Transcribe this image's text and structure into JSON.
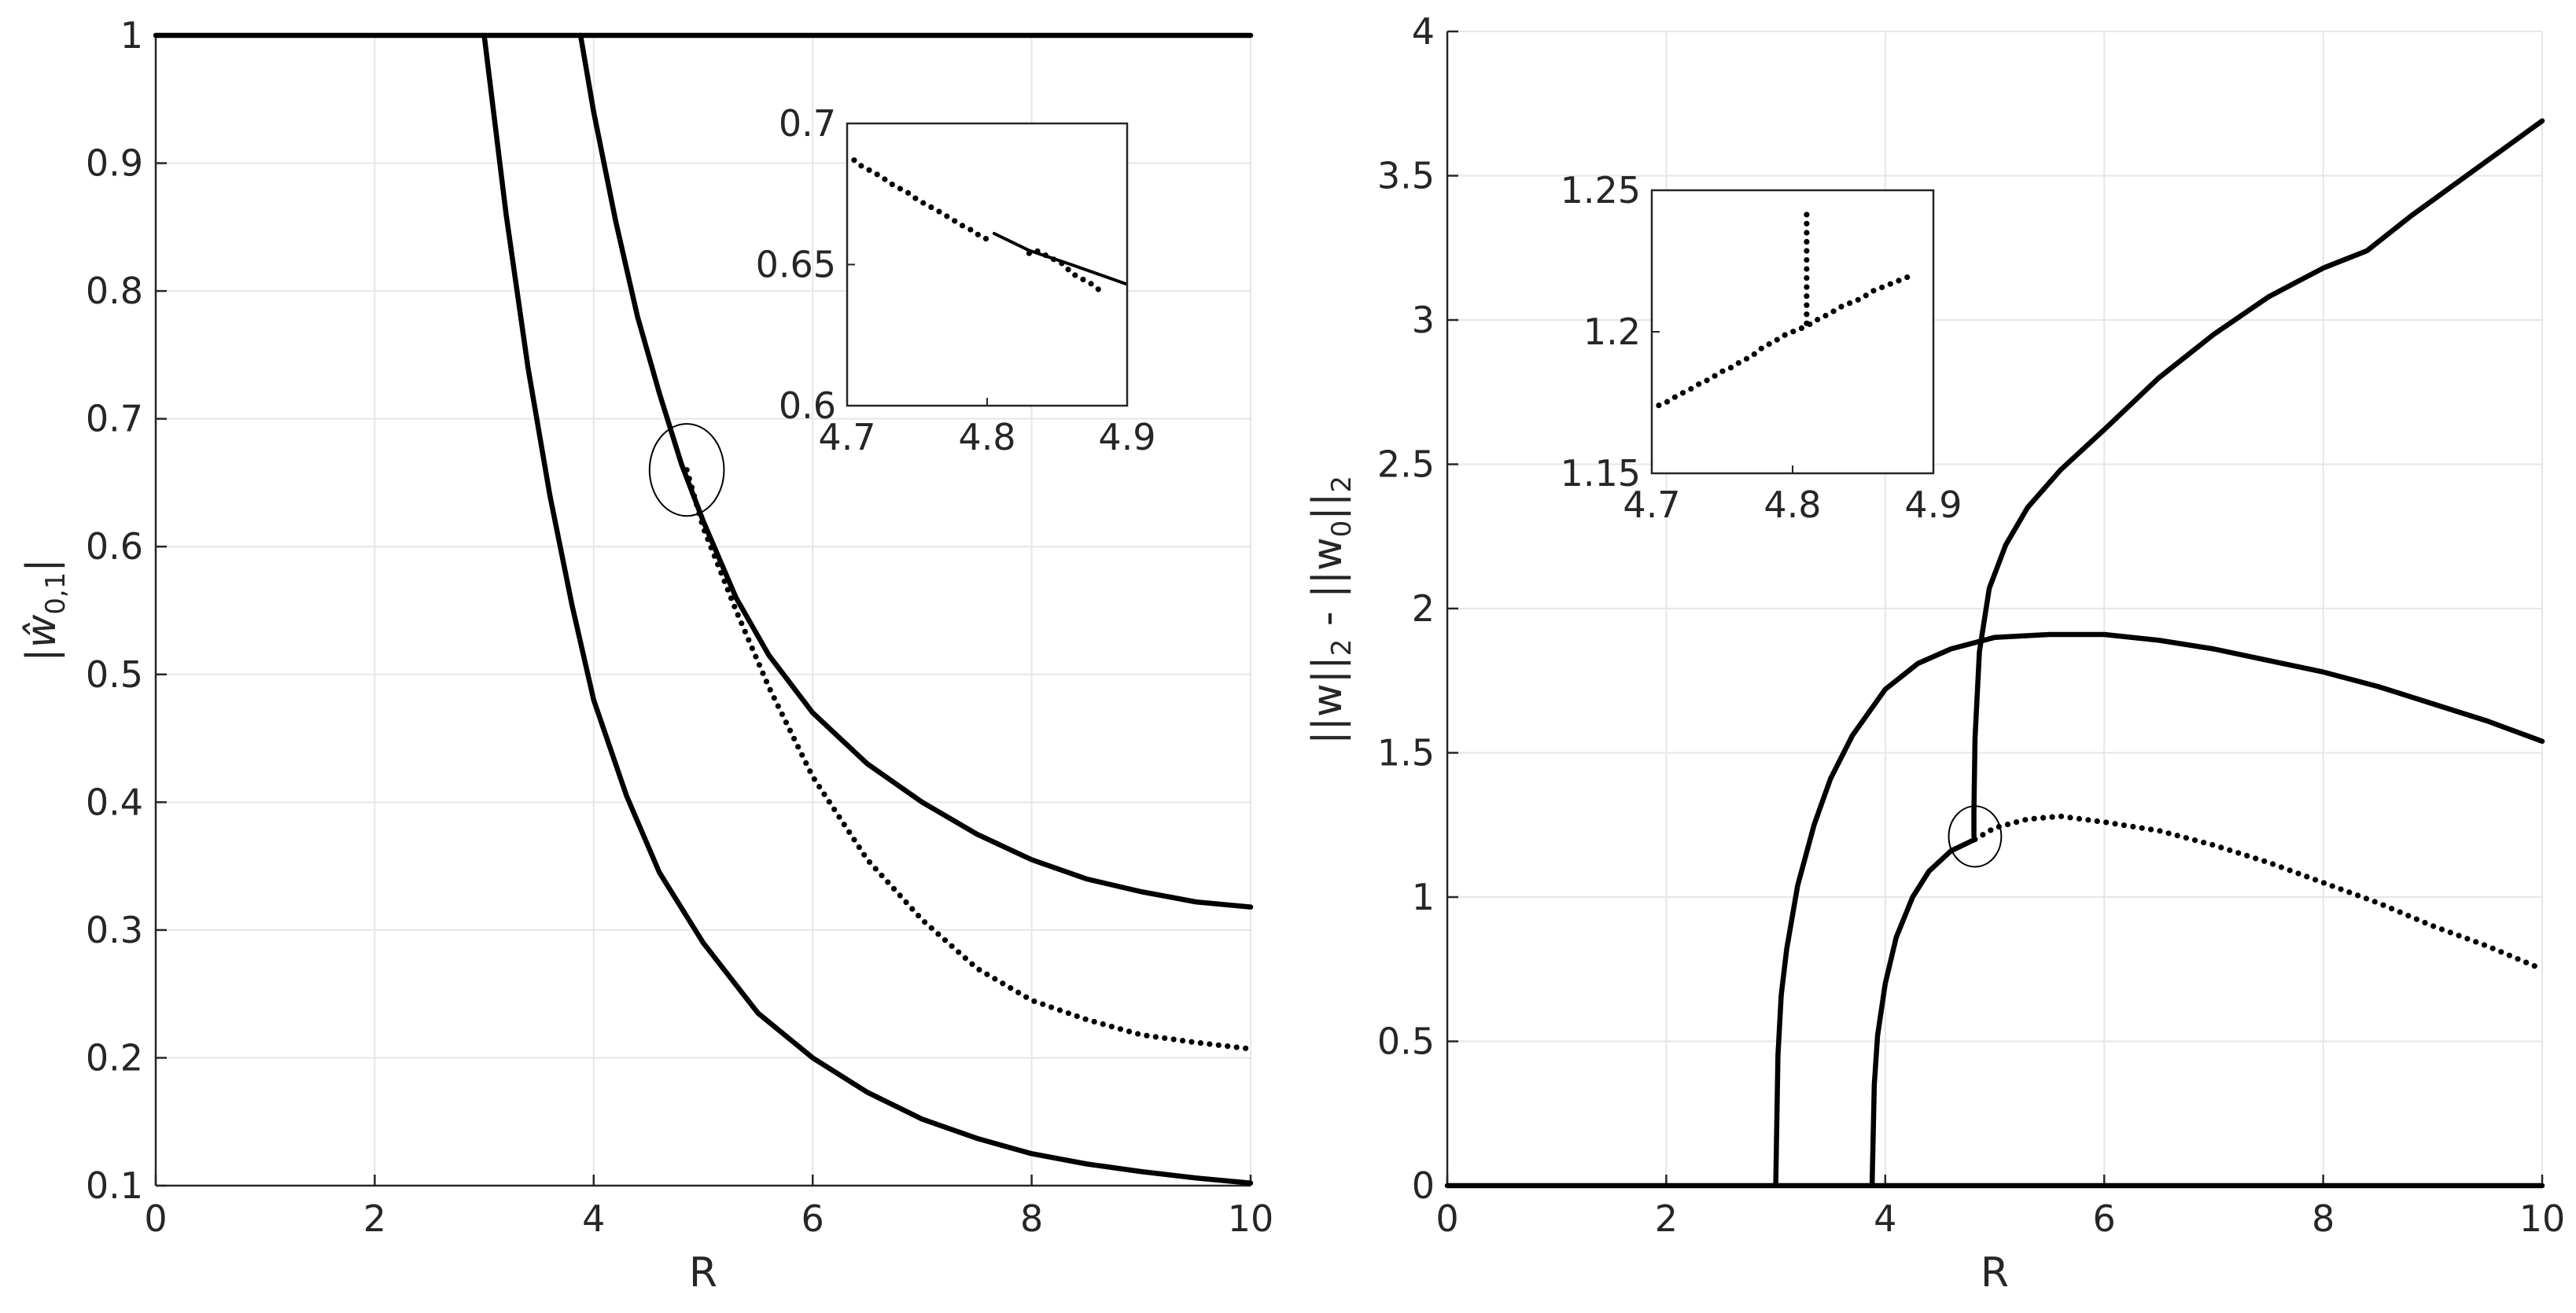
{
  "chart_data": [
    {
      "type": "line",
      "panel": "left",
      "title": "",
      "xlabel": "R",
      "ylabel": "|ŵ",
      "ylabel_subscript": "0,1",
      "ylabel_close": "|",
      "xlim": [
        0,
        10
      ],
      "ylim": [
        0.1,
        1
      ],
      "xticks": [
        "0",
        "2",
        "4",
        "6",
        "8",
        "10"
      ],
      "yticks": [
        "0.1",
        "0.2",
        "0.3",
        "0.4",
        "0.5",
        "0.6",
        "0.7",
        "0.8",
        "0.9",
        "1"
      ],
      "grid": true,
      "series": [
        {
          "name": "constant branch",
          "style": "solid",
          "x": [
            0,
            10
          ],
          "y": [
            1,
            1
          ]
        },
        {
          "name": "branch A",
          "style": "solid",
          "x": [
            3.0,
            3.2,
            3.4,
            3.6,
            3.8,
            4.0,
            4.3,
            4.6,
            5.0,
            5.5,
            6.0,
            6.5,
            7.0,
            7.5,
            8.0,
            8.5,
            9.0,
            9.5,
            10.0
          ],
          "y": [
            1.0,
            0.86,
            0.74,
            0.64,
            0.555,
            0.48,
            0.405,
            0.345,
            0.29,
            0.235,
            0.2,
            0.173,
            0.152,
            0.137,
            0.125,
            0.117,
            0.111,
            0.106,
            0.102
          ]
        },
        {
          "name": "branch B",
          "style": "solid",
          "x": [
            3.88,
            4.0,
            4.2,
            4.4,
            4.6,
            4.8,
            5.0,
            5.3,
            5.6,
            6.0,
            6.5,
            7.0,
            7.5,
            8.0,
            8.5,
            9.0,
            9.5,
            10.0
          ],
          "y": [
            1.0,
            0.94,
            0.855,
            0.78,
            0.72,
            0.665,
            0.62,
            0.56,
            0.515,
            0.47,
            0.43,
            0.4,
            0.375,
            0.355,
            0.34,
            0.33,
            0.322,
            0.318
          ]
        },
        {
          "name": "branch C",
          "style": "dotted",
          "x": [
            4.85,
            5.0,
            5.3,
            5.6,
            6.0,
            6.5,
            7.0,
            7.5,
            8.0,
            8.5,
            9.0,
            9.5,
            10.0
          ],
          "y": [
            0.66,
            0.615,
            0.55,
            0.49,
            0.42,
            0.355,
            0.308,
            0.27,
            0.245,
            0.23,
            0.218,
            0.212,
            0.207
          ]
        }
      ],
      "annotation": {
        "type": "ellipse",
        "cx": 4.85,
        "cy": 0.66,
        "rx": 0.34,
        "ry": 0.036
      },
      "inset": {
        "xlim": [
          4.7,
          4.9
        ],
        "ylim": [
          0.6,
          0.7
        ],
        "xticks": [
          "4.7",
          "4.8",
          "4.9"
        ],
        "yticks": [
          "0.6",
          "0.65",
          "0.7"
        ],
        "series": [
          {
            "name": "inset dotted",
            "style": "dotted",
            "x": [
              4.705,
              4.71,
              4.725,
              4.73,
              4.745,
              4.75,
              4.765,
              4.775,
              4.785,
              4.79,
              4.795,
              4.805
            ],
            "y": [
              0.687,
              0.685,
              0.681,
              0.679,
              0.675,
              0.673,
              0.669,
              0.666,
              0.663,
              0.662,
              0.66,
              0.658
            ]
          },
          {
            "name": "inset solid",
            "style": "solid",
            "x": [
              4.805,
              4.83,
              4.86,
              4.9
            ],
            "y": [
              0.661,
              0.655,
              0.65,
              0.643
            ]
          },
          {
            "name": "inset stray dots",
            "style": "dotted",
            "x": [
              4.83,
              4.835,
              4.855,
              4.86,
              4.875,
              4.88,
              4.885
            ],
            "y": [
              0.654,
              0.655,
              0.65,
              0.647,
              0.643,
              0.641,
              0.64
            ]
          }
        ]
      }
    },
    {
      "type": "line",
      "panel": "right",
      "title": "",
      "xlabel": "R",
      "ylabel": "||w||",
      "ylabel_sub1": "2",
      "ylabel_mid": " - ||w",
      "ylabel_sub2": "0",
      "ylabel_end": "||",
      "ylabel_sub3": "2",
      "xlim": [
        0,
        10
      ],
      "ylim": [
        0,
        4
      ],
      "xticks": [
        "0",
        "2",
        "4",
        "6",
        "8",
        "10"
      ],
      "yticks": [
        "0",
        "0.5",
        "1",
        "1.5",
        "2",
        "2.5",
        "3",
        "3.5",
        "4"
      ],
      "grid": true,
      "series": [
        {
          "name": "zero branch",
          "style": "solid",
          "x": [
            0,
            10
          ],
          "y": [
            0,
            0
          ]
        },
        {
          "name": "branch from R=3",
          "style": "solid",
          "x": [
            3.0,
            3.02,
            3.05,
            3.1,
            3.2,
            3.35,
            3.5,
            3.7,
            4.0,
            4.3,
            4.6,
            5.0,
            5.5,
            6.0,
            6.5,
            7.0,
            7.5,
            8.0,
            8.5,
            9.0,
            9.5,
            10.0
          ],
          "y": [
            0,
            0.45,
            0.66,
            0.82,
            1.04,
            1.25,
            1.41,
            1.56,
            1.72,
            1.81,
            1.86,
            1.9,
            1.91,
            1.91,
            1.89,
            1.86,
            1.82,
            1.78,
            1.73,
            1.67,
            1.61,
            1.54
          ]
        },
        {
          "name": "branch from R=3.88",
          "style": "solid",
          "x": [
            3.88,
            3.9,
            3.93,
            4.0,
            4.1,
            4.25,
            4.4,
            4.6,
            4.82
          ],
          "y": [
            0,
            0.35,
            0.52,
            0.7,
            0.86,
            1.0,
            1.09,
            1.16,
            1.2
          ]
        },
        {
          "name": "branch from R=3.88 continued",
          "style": "dotted",
          "x": [
            4.82,
            5.0,
            5.3,
            5.6,
            6.0,
            6.5,
            7.0,
            7.5,
            8.0,
            8.5,
            9.0,
            9.5,
            10.0
          ],
          "y": [
            1.2,
            1.24,
            1.27,
            1.28,
            1.26,
            1.23,
            1.18,
            1.12,
            1.05,
            0.98,
            0.9,
            0.83,
            0.75
          ]
        },
        {
          "name": "vertical branch",
          "style": "solid",
          "x": [
            4.81,
            4.81,
            4.82,
            4.86,
            4.95,
            5.1,
            5.3,
            5.6,
            6.0,
            6.5,
            7.0,
            7.5,
            8.0,
            8.4,
            8.8,
            9.2,
            9.6,
            10.0
          ],
          "y": [
            1.21,
            1.3,
            1.55,
            1.85,
            2.07,
            2.22,
            2.35,
            2.48,
            2.62,
            2.8,
            2.95,
            3.08,
            3.18,
            3.24,
            3.36,
            3.47,
            3.58,
            3.69
          ]
        }
      ],
      "annotation": {
        "type": "ellipse",
        "cx": 4.82,
        "cy": 1.21,
        "rx": 0.24,
        "ry": 0.105
      },
      "inset": {
        "xlim": [
          4.7,
          4.9
        ],
        "ylim": [
          1.15,
          1.25
        ],
        "xticks": [
          "4.7",
          "4.8",
          "4.9"
        ],
        "yticks": [
          "1.15",
          "1.2",
          "1.25"
        ],
        "series": [
          {
            "name": "inset branch",
            "style": "dotted",
            "x": [
              4.705,
              4.71,
              4.72,
              4.725,
              4.735,
              4.74,
              4.75,
              4.755,
              4.765,
              4.77,
              4.78,
              4.785,
              4.795,
              4.8,
              4.81,
              4.82,
              4.825,
              4.835,
              4.84,
              4.85,
              4.855,
              4.865,
              4.87,
              4.88,
              4.885
            ],
            "y": [
              1.174,
              1.175,
              1.178,
              1.179,
              1.182,
              1.183,
              1.186,
              1.187,
              1.19,
              1.191,
              1.195,
              1.196,
              1.199,
              1.2,
              1.202,
              1.205,
              1.206,
              1.209,
              1.21,
              1.212,
              1.214,
              1.216,
              1.217,
              1.219,
              1.22
            ]
          },
          {
            "name": "inset vertical",
            "style": "dotted",
            "x": [
              4.81,
              4.81,
              4.81,
              4.81,
              4.81,
              4.81
            ],
            "y": [
              1.203,
              1.209,
              1.219,
              1.23,
              1.237,
              1.243
            ]
          }
        ]
      }
    }
  ]
}
